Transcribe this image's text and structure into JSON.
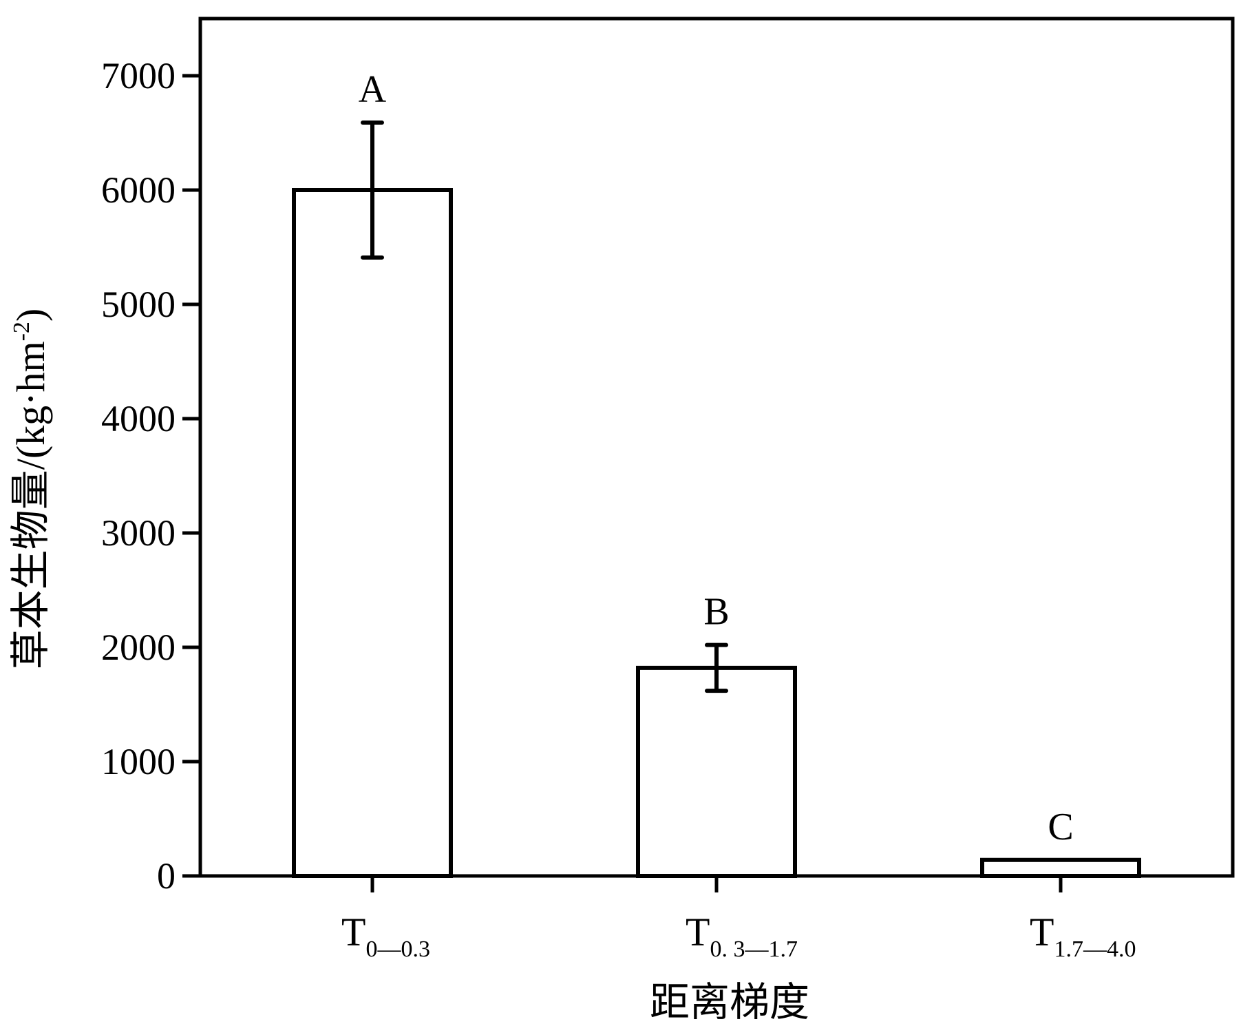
{
  "chart_data": {
    "type": "bar",
    "categories": [
      {
        "base": "T",
        "sub": "0—0.3"
      },
      {
        "base": "T",
        "sub": "0. 3—1.7"
      },
      {
        "base": "T",
        "sub": "1.7—4.0"
      }
    ],
    "values": [
      6000,
      1820,
      140
    ],
    "error_bars": [
      {
        "low": 5410,
        "high": 6590
      },
      {
        "low": 1620,
        "high": 2020
      },
      {
        "low": 140,
        "high": 140
      }
    ],
    "significance_labels": [
      "A",
      "B",
      "C"
    ],
    "xlabel": "距离梯度",
    "ylabel": "草本生物量/(kg·hm",
    "ylabel_superscript": "-2",
    "ylabel_close": ")",
    "yticks": [
      "0",
      "1000",
      "2000",
      "3000",
      "4000",
      "5000",
      "6000",
      "7000"
    ],
    "ylim": [
      0,
      7500
    ],
    "grid": false,
    "bar_color": "#ffffff",
    "edge_color": "#000000"
  }
}
